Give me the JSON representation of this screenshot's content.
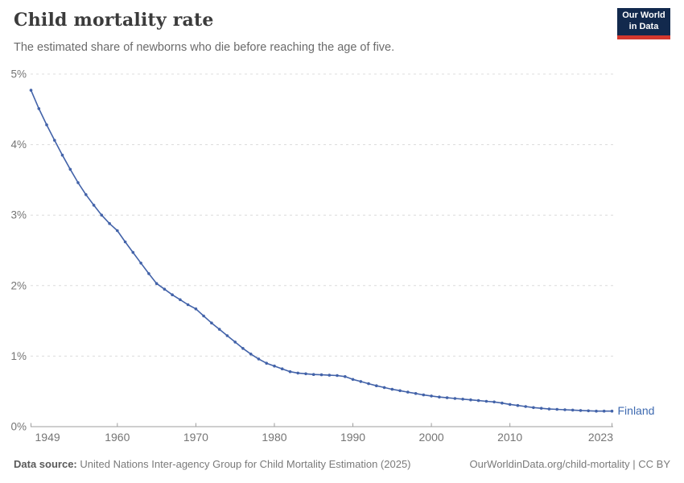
{
  "header": {
    "title": "Child mortality rate",
    "subtitle": "The estimated share of newborns who die before reaching the age of five.",
    "logo": {
      "line1": "Our World",
      "line2": "in Data"
    }
  },
  "footer": {
    "source_label": "Data source:",
    "source_text": "United Nations Inter-agency Group for Child Mortality Estimation (2025)",
    "right_text": "OurWorldinData.org/child-mortality | CC BY"
  },
  "colors": {
    "line": "#4363a9",
    "entity_label": "#3e6ab0",
    "grid": "#dcdcdc",
    "axis": "#9e9e9e",
    "tick_label": "#757575",
    "logo_bg": "#12294d",
    "logo_stripe": "#d4382e"
  },
  "chart_data": {
    "type": "line",
    "title": "Child mortality rate",
    "entity": "Finland",
    "unit": "%",
    "xlabel": "",
    "ylabel": "",
    "xlim": [
      1949,
      2023
    ],
    "ylim": [
      0,
      5
    ],
    "x_ticks": [
      1949,
      1960,
      1970,
      1980,
      1990,
      2000,
      2010,
      2023
    ],
    "y_ticks": [
      0,
      1,
      2,
      3,
      4,
      5
    ],
    "y_tick_labels": [
      "0%",
      "1%",
      "2%",
      "3%",
      "4%",
      "5%"
    ],
    "grid": "horizontal-dashed",
    "legend_position": "end-of-line-label",
    "x": [
      1949,
      1950,
      1951,
      1952,
      1953,
      1954,
      1955,
      1956,
      1957,
      1958,
      1959,
      1960,
      1961,
      1962,
      1963,
      1964,
      1965,
      1966,
      1967,
      1968,
      1969,
      1970,
      1971,
      1972,
      1973,
      1974,
      1975,
      1976,
      1977,
      1978,
      1979,
      1980,
      1981,
      1982,
      1983,
      1984,
      1985,
      1986,
      1987,
      1988,
      1989,
      1990,
      1991,
      1992,
      1993,
      1994,
      1995,
      1996,
      1997,
      1998,
      1999,
      2000,
      2001,
      2002,
      2003,
      2004,
      2005,
      2006,
      2007,
      2008,
      2009,
      2010,
      2011,
      2012,
      2013,
      2014,
      2015,
      2016,
      2017,
      2018,
      2019,
      2020,
      2021,
      2022,
      2023
    ],
    "values": [
      4.77,
      4.51,
      4.28,
      4.06,
      3.85,
      3.65,
      3.46,
      3.29,
      3.14,
      3.0,
      2.88,
      2.78,
      2.62,
      2.47,
      2.32,
      2.17,
      2.03,
      1.95,
      1.87,
      1.8,
      1.73,
      1.67,
      1.57,
      1.47,
      1.38,
      1.29,
      1.2,
      1.11,
      1.03,
      0.96,
      0.9,
      0.86,
      0.82,
      0.78,
      0.76,
      0.75,
      0.74,
      0.735,
      0.73,
      0.725,
      0.71,
      0.67,
      0.64,
      0.61,
      0.58,
      0.555,
      0.53,
      0.51,
      0.49,
      0.47,
      0.45,
      0.435,
      0.42,
      0.41,
      0.4,
      0.39,
      0.38,
      0.37,
      0.36,
      0.35,
      0.335,
      0.315,
      0.3,
      0.285,
      0.27,
      0.26,
      0.25,
      0.245,
      0.24,
      0.235,
      0.23,
      0.225,
      0.22,
      0.22,
      0.22
    ]
  }
}
